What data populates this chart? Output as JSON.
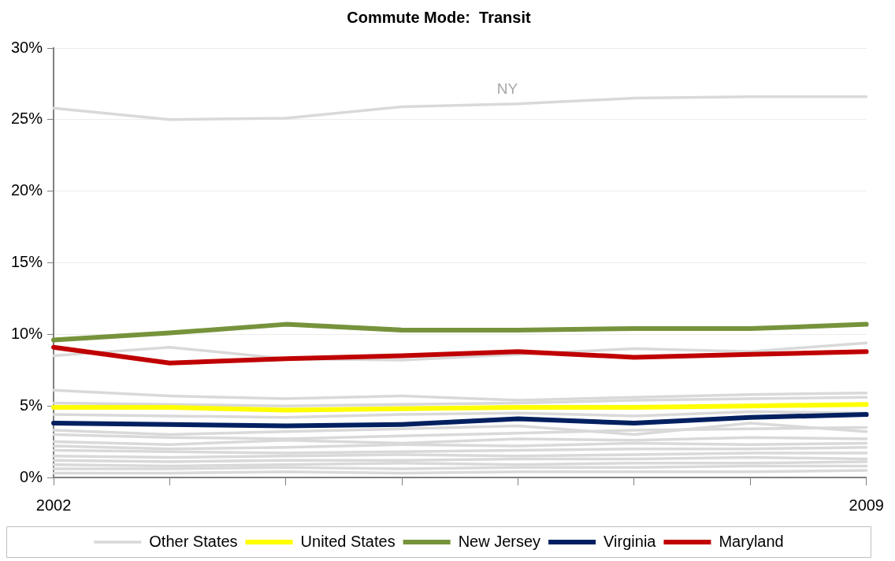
{
  "chart_data": {
    "type": "line",
    "title": "Commute Mode:  Transit",
    "categories": [
      "2002",
      null,
      null,
      null,
      null,
      null,
      null,
      "2009"
    ],
    "ylim": [
      0,
      30
    ],
    "yticks": [
      {
        "value": 0,
        "label": "0%"
      },
      {
        "value": 5,
        "label": "5%"
      },
      {
        "value": 10,
        "label": "10%"
      },
      {
        "value": 15,
        "label": "15%"
      },
      {
        "value": 20,
        "label": "20%"
      },
      {
        "value": 25,
        "label": "25%"
      },
      {
        "value": 30,
        "label": "30%"
      }
    ],
    "grid": "y",
    "legend": "bottom",
    "marker": "none",
    "line_style": "solid",
    "annotations": [
      {
        "text": "NY",
        "y": 26.1
      }
    ],
    "series": [
      {
        "name": "Other States",
        "color": "#d9d9d9",
        "values": [
          25.8,
          25.0,
          25.1,
          25.9,
          26.1,
          26.5,
          26.6,
          26.6
        ]
      },
      {
        "color": "#d9d9d9",
        "values": [
          8.5,
          9.1,
          8.3,
          8.2,
          8.6,
          9.0,
          8.8,
          9.4
        ]
      },
      {
        "color": "#d9d9d9",
        "values": [
          6.1,
          5.7,
          5.5,
          5.7,
          5.4,
          5.6,
          5.8,
          5.9
        ]
      },
      {
        "color": "#d9d9d9",
        "values": [
          5.2,
          5.1,
          5.0,
          5.1,
          5.2,
          5.4,
          5.5,
          5.6
        ]
      },
      {
        "color": "#d9d9d9",
        "values": [
          4.4,
          4.3,
          4.2,
          4.4,
          4.5,
          4.3,
          4.6,
          4.5
        ]
      },
      {
        "color": "#d9d9d9",
        "values": [
          3.3,
          3.0,
          3.2,
          3.4,
          3.6,
          3.0,
          3.8,
          3.2
        ]
      },
      {
        "color": "#d9d9d9",
        "values": [
          3.0,
          2.8,
          2.7,
          2.9,
          3.1,
          3.3,
          3.4,
          3.5
        ]
      },
      {
        "color": "#d9d9d9",
        "values": [
          2.5,
          2.3,
          2.6,
          2.4,
          2.7,
          2.6,
          2.8,
          2.7
        ]
      },
      {
        "color": "#d9d9d9",
        "values": [
          2.2,
          2.0,
          2.1,
          2.3,
          2.2,
          2.4,
          2.3,
          2.4
        ]
      },
      {
        "color": "#d9d9d9",
        "values": [
          1.9,
          1.8,
          1.7,
          1.8,
          1.9,
          2.0,
          2.0,
          2.1
        ]
      },
      {
        "color": "#d9d9d9",
        "values": [
          1.5,
          1.4,
          1.5,
          1.6,
          1.5,
          1.6,
          1.7,
          1.7
        ]
      },
      {
        "color": "#d9d9d9",
        "values": [
          1.2,
          1.1,
          1.2,
          1.2,
          1.3,
          1.3,
          1.4,
          1.3
        ]
      },
      {
        "color": "#d9d9d9",
        "values": [
          0.9,
          0.8,
          0.9,
          1.0,
          0.9,
          1.0,
          1.0,
          1.1
        ]
      },
      {
        "color": "#d9d9d9",
        "values": [
          0.6,
          0.6,
          0.7,
          0.6,
          0.7,
          0.7,
          0.8,
          0.8
        ]
      },
      {
        "color": "#d9d9d9",
        "values": [
          0.3,
          0.3,
          0.4,
          0.3,
          0.4,
          0.4,
          0.4,
          0.5
        ]
      },
      {
        "name": "United States",
        "color": "#ffff00",
        "values": [
          4.9,
          4.9,
          4.7,
          4.8,
          4.9,
          4.9,
          5.0,
          5.1
        ]
      },
      {
        "name": "New Jersey",
        "color": "#76933c",
        "values": [
          9.6,
          10.1,
          10.7,
          10.3,
          10.3,
          10.4,
          10.4,
          10.7
        ]
      },
      {
        "name": "Virginia",
        "color": "#002060",
        "values": [
          3.8,
          3.7,
          3.6,
          3.7,
          4.1,
          3.8,
          4.2,
          4.4
        ]
      },
      {
        "name": "Maryland",
        "color": "#c00000",
        "values": [
          9.1,
          8.0,
          8.3,
          8.5,
          8.8,
          8.4,
          8.6,
          8.8
        ]
      }
    ]
  }
}
